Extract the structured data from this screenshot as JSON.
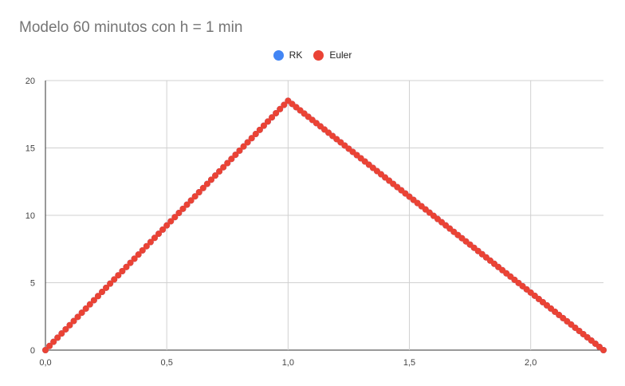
{
  "chart_data": {
    "type": "scatter",
    "title": "Modelo 60 minutos con h = 1 min",
    "xlabel": "",
    "ylabel": "",
    "xlim": [
      0,
      2.3
    ],
    "ylim": [
      0,
      20
    ],
    "x_ticks": [
      "0,0",
      "0,5",
      "1,0",
      "1,5",
      "2,0"
    ],
    "x_tick_values": [
      0,
      0.5,
      1.0,
      1.5,
      2.0
    ],
    "y_ticks": [
      "0",
      "5",
      "10",
      "15",
      "20"
    ],
    "y_tick_values": [
      0,
      5,
      10,
      15,
      20
    ],
    "grid": true,
    "legend_position": "top",
    "series": [
      {
        "name": "RK",
        "color": "#4285F4",
        "points": [
          [
            0,
            0
          ],
          [
            1.0,
            18.5
          ],
          [
            2.3,
            0
          ]
        ]
      },
      {
        "name": "Euler",
        "color": "#EA4335",
        "points": [
          [
            0,
            0
          ],
          [
            1.0,
            18.5
          ],
          [
            2.3,
            0
          ]
        ]
      }
    ]
  }
}
